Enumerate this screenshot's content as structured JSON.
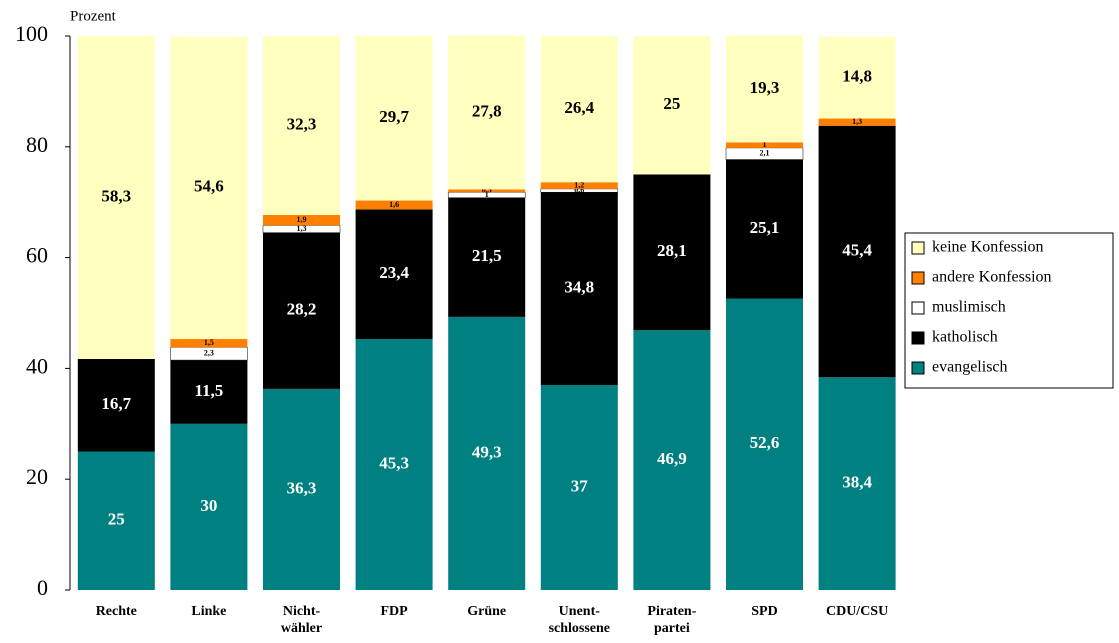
{
  "chart_data": {
    "type": "stacked_bar",
    "y_axis_label": "Prozent",
    "categories": [
      "Rechte",
      "Linke",
      "Nicht-\nwähler",
      "FDP",
      "Grüne",
      "Unent-\nschlossene",
      "Piraten-\npartei",
      "SPD",
      "CDU/CSU"
    ],
    "ylim": [
      0,
      100
    ],
    "yticks": [
      0,
      20,
      40,
      60,
      80,
      100
    ],
    "series": [
      {
        "name": "evangelisch",
        "color": "#008080",
        "label_color": "#ffffff",
        "values": [
          25,
          30,
          36.3,
          45.3,
          49.3,
          37,
          46.9,
          52.6,
          38.4
        ],
        "value_labels": [
          "25",
          "30",
          "36,3",
          "45,3",
          "49,3",
          "37",
          "46,9",
          "52,6",
          "38,4"
        ]
      },
      {
        "name": "katholisch",
        "color": "#000000",
        "label_color": "#ffffff",
        "values": [
          16.7,
          11.5,
          28.2,
          23.4,
          21.5,
          34.8,
          28.1,
          25.1,
          45.4
        ],
        "value_labels": [
          "16,7",
          "11,5",
          "28,2",
          "23,4",
          "21,5",
          "34,8",
          "28,1",
          "25,1",
          "45,4"
        ]
      },
      {
        "name": "muslimisch",
        "color": "#ffffff",
        "label_color": "#000000",
        "values": [
          null,
          2.3,
          1.3,
          null,
          1,
          0.6,
          null,
          2.1,
          null
        ],
        "value_labels": [
          null,
          "2,3",
          "1,3",
          null,
          "1",
          "0,6",
          null,
          "2,1",
          null
        ]
      },
      {
        "name": "andere Konfession",
        "color": "#ff8000",
        "label_color": "#000000",
        "values": [
          null,
          1.5,
          1.9,
          1.6,
          0.5,
          1.2,
          null,
          1,
          1.3
        ],
        "value_labels": [
          null,
          "1,5",
          "1,9",
          "1,6",
          "0,5",
          "1,2",
          null,
          "1",
          "1,3"
        ]
      },
      {
        "name": "keine Konfession",
        "color": "#ffffc0",
        "label_color": "#000000",
        "values": [
          58.3,
          54.6,
          32.3,
          29.7,
          27.8,
          26.4,
          25,
          19.3,
          14.8
        ],
        "value_labels": [
          "58,3",
          "54,6",
          "32,3",
          "29,7",
          "27,8",
          "26,4",
          "25",
          "19,3",
          "14,8"
        ]
      }
    ]
  }
}
